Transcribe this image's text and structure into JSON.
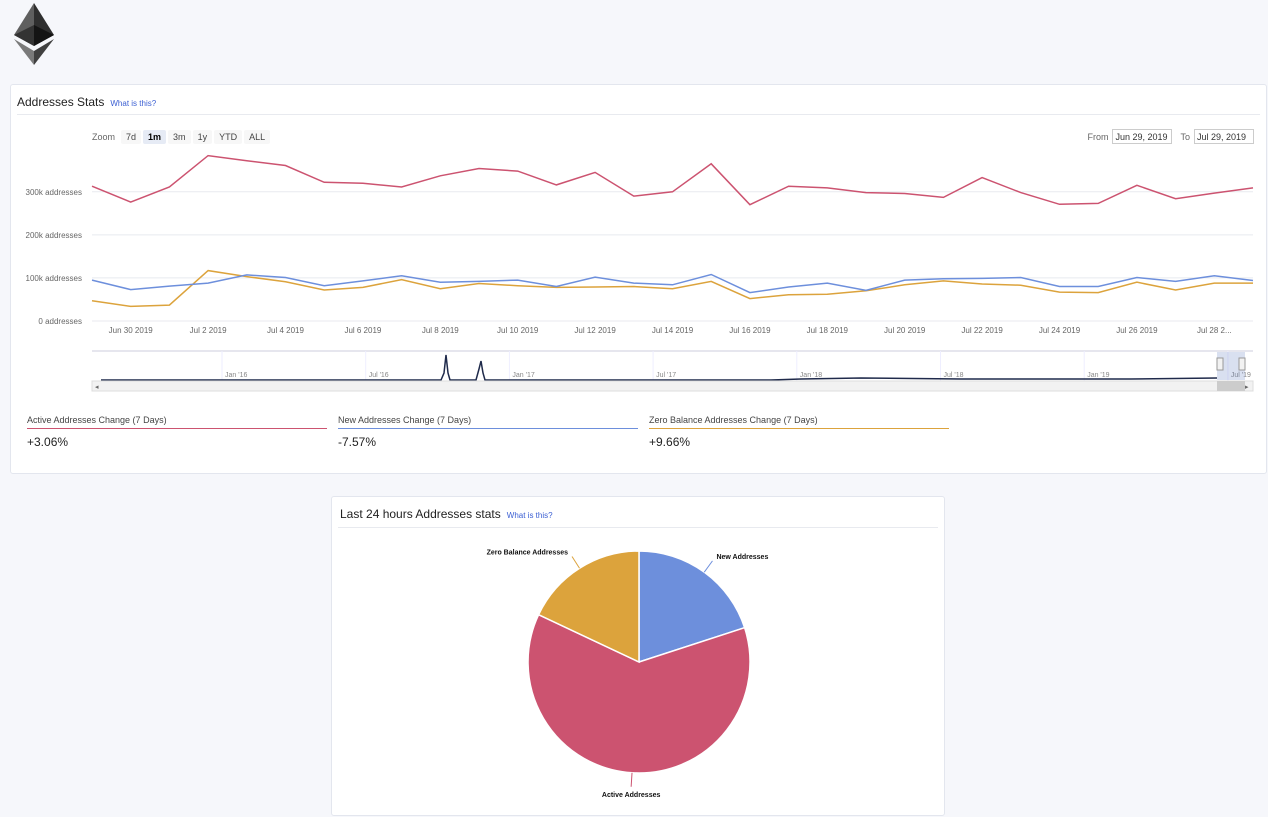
{
  "colors": {
    "active": "#cc5370",
    "new": "#6d8fdc",
    "zero": "#dca33c",
    "grid": "#e8eaef",
    "navigator_line": "#1f2a4b"
  },
  "logo": {
    "icon": "ethereum-icon"
  },
  "address_stats": {
    "title": "Addresses Stats",
    "help_link": "What is this?",
    "zoom_label": "Zoom",
    "zoom_buttons": [
      "7d",
      "1m",
      "3m",
      "1y",
      "YTD",
      "ALL"
    ],
    "zoom_selected": "1m",
    "from_label": "From",
    "from_value": "Jun 29, 2019",
    "to_label": "To",
    "to_value": "Jul 29, 2019",
    "navigator_labels": [
      "Jan '16",
      "Jul '16",
      "Jan '17",
      "Jul '17",
      "Jan '18",
      "Jul '18",
      "Jan '19",
      "Jul '19"
    ],
    "stats": [
      {
        "label": "Active Addresses Change (7 Days)",
        "value": "+3.06%"
      },
      {
        "label": "New Addresses Change (7 Days)",
        "value": "-7.57%"
      },
      {
        "label": "Zero Balance Addresses Change (7 Days)",
        "value": "+9.66%"
      }
    ]
  },
  "pie_card": {
    "title": "Last 24 hours Addresses stats",
    "help_link": "What is this?"
  },
  "chart_data": [
    {
      "type": "line",
      "y_tick_labels": [
        "300k addresses",
        "200k addresses",
        "100k addresses",
        "0 addresses"
      ],
      "y_ticks": [
        300000,
        200000,
        100000,
        0
      ],
      "x_tick_labels": [
        "Jun 30 2019",
        "Jul 2 2019",
        "Jul 4 2019",
        "Jul 6 2019",
        "Jul 8 2019",
        "Jul 10 2019",
        "Jul 12 2019",
        "Jul 14 2019",
        "Jul 16 2019",
        "Jul 18 2019",
        "Jul 20 2019",
        "Jul 22 2019",
        "Jul 24 2019",
        "Jul 26 2019",
        "Jul 28 2..."
      ],
      "x": [
        "2019-06-29",
        "2019-06-30",
        "2019-07-01",
        "2019-07-02",
        "2019-07-03",
        "2019-07-04",
        "2019-07-05",
        "2019-07-06",
        "2019-07-07",
        "2019-07-08",
        "2019-07-09",
        "2019-07-10",
        "2019-07-11",
        "2019-07-12",
        "2019-07-13",
        "2019-07-14",
        "2019-07-15",
        "2019-07-16",
        "2019-07-17",
        "2019-07-18",
        "2019-07-19",
        "2019-07-20",
        "2019-07-21",
        "2019-07-22",
        "2019-07-23",
        "2019-07-24",
        "2019-07-25",
        "2019-07-26",
        "2019-07-27",
        "2019-07-28",
        "2019-07-29"
      ],
      "ylim": [
        0,
        390000
      ],
      "series": [
        {
          "name": "Active Addresses",
          "values": [
            313000,
            276000,
            311000,
            384000,
            372000,
            361000,
            322000,
            320000,
            311000,
            337000,
            354000,
            348000,
            316000,
            345000,
            290000,
            300000,
            365000,
            270000,
            313000,
            309000,
            298000,
            296000,
            287000,
            333000,
            298000,
            271000,
            273000,
            315000,
            284000,
            297000,
            309000
          ]
        },
        {
          "name": "New Addresses",
          "values": [
            95000,
            73000,
            81000,
            88000,
            107000,
            101000,
            82000,
            93000,
            105000,
            90000,
            92000,
            95000,
            80000,
            102000,
            88000,
            84000,
            108000,
            66000,
            79000,
            88000,
            71000,
            95000,
            98000,
            99000,
            101000,
            80000,
            80000,
            101000,
            92000,
            105000,
            94000
          ]
        },
        {
          "name": "Zero Balance Addresses",
          "values": [
            47000,
            34000,
            37000,
            117000,
            103000,
            91000,
            72000,
            78000,
            96000,
            75000,
            87000,
            82000,
            78000,
            79000,
            80000,
            75000,
            92000,
            52000,
            61000,
            62000,
            70000,
            84000,
            93000,
            86000,
            83000,
            67000,
            66000,
            90000,
            72000,
            88000,
            88000
          ]
        }
      ]
    },
    {
      "type": "pie",
      "series": [
        {
          "name": "New Addresses",
          "values": [
            0.2
          ]
        },
        {
          "name": "Active Addresses",
          "values": [
            0.62
          ]
        },
        {
          "name": "Zero Balance Addresses",
          "values": [
            0.18
          ]
        }
      ]
    }
  ]
}
